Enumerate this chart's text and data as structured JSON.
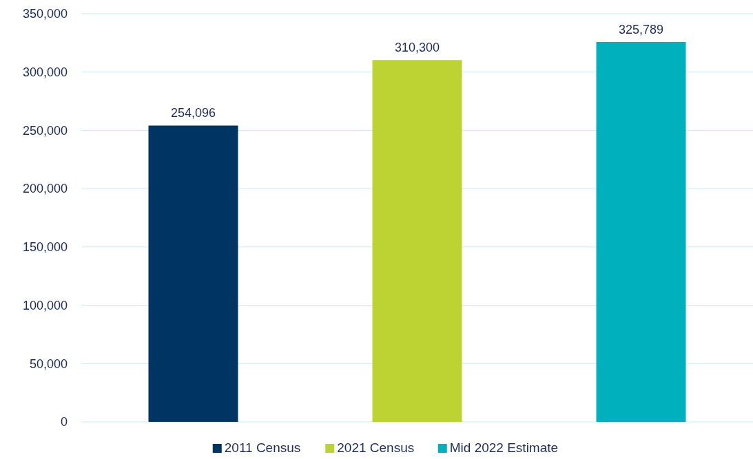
{
  "chart_data": {
    "type": "bar",
    "categories": [
      null
    ],
    "series": [
      {
        "name": "2011 Census",
        "color": "#003462",
        "values": [
          254096
        ],
        "value_labels": [
          "254,096"
        ]
      },
      {
        "name": "2021 Census",
        "color": "#bdd333",
        "values": [
          310300
        ],
        "value_labels": [
          "310,300"
        ]
      },
      {
        "name": "Mid 2022 Estimate",
        "color": "#00b1bd",
        "values": [
          325789
        ],
        "value_labels": [
          "325,789"
        ]
      }
    ],
    "ylim": [
      0,
      350000
    ],
    "yticks": [
      {
        "value": 0,
        "label": "0"
      },
      {
        "value": 50000,
        "label": "50,000"
      },
      {
        "value": 100000,
        "label": "100,000"
      },
      {
        "value": 150000,
        "label": "150,000"
      },
      {
        "value": 200000,
        "label": "200,000"
      },
      {
        "value": 250000,
        "label": "250,000"
      },
      {
        "value": 300000,
        "label": "300,000"
      },
      {
        "value": 350000,
        "label": "350,000"
      }
    ],
    "grid": "y",
    "legend": "bottom"
  }
}
